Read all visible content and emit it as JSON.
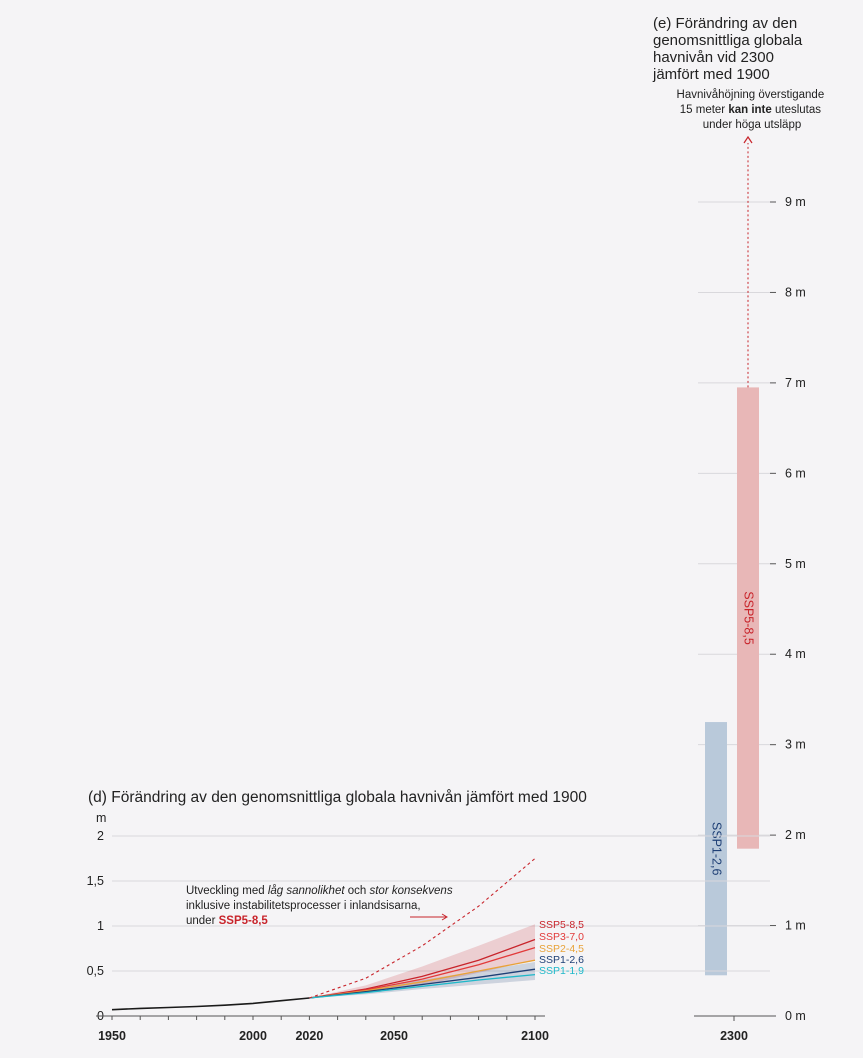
{
  "colors": {
    "ssp585": "#c8242b",
    "ssp370": "#e23a3a",
    "ssp245": "#e8a238",
    "ssp126": "#1e3f75",
    "ssp119": "#1fb8c9",
    "historical": "#1a1a1a",
    "bar_ssp126": "#b9c9da",
    "bar_ssp585": "#e8b7b7",
    "grid": "#d9d8dc"
  },
  "panel_e": {
    "title_lines": [
      "(e) Förändring av den",
      "genomsnittliga globala",
      "havnivån vid 2300",
      "jämfört med 1900"
    ],
    "note_lines": [
      "Havnivåhöjning överstigande",
      "15 meter ",
      "kan inte",
      " uteslutas",
      "under höga utsläpp"
    ],
    "x_tick": "2300",
    "y_unit": "m"
  },
  "panel_d": {
    "title": "(d) Förändring av den genomsnittliga globala havnivån jämfört med 1900",
    "y_unit": "m",
    "note_parts": [
      "Utveckling med ",
      "låg sannolikhet",
      " och ",
      "stor konsekvens",
      "inklusive instabilitetsprocesser i inlandsisarna,",
      "under ",
      "SSP5-8,5"
    ]
  },
  "chart_data": [
    {
      "type": "line",
      "title": "(d) Förändring av den genomsnittliga globala havnivån jämfört med 1900",
      "xlabel": "",
      "ylabel": "m",
      "xlim": [
        1950,
        2100
      ],
      "ylim": [
        0,
        2
      ],
      "x_ticks": [
        "1950",
        "2000",
        "2020",
        "2050",
        "2100"
      ],
      "y_ticks": [
        "0",
        "0,5",
        "1",
        "1,5",
        "2"
      ],
      "historical": {
        "x": [
          1950,
          1960,
          1970,
          1980,
          1990,
          2000,
          2010,
          2020
        ],
        "y": [
          0.07,
          0.085,
          0.095,
          0.105,
          0.12,
          0.14,
          0.17,
          0.2
        ]
      },
      "series": [
        {
          "name": "SSP5-8,5",
          "key": "ssp585",
          "x": [
            2020,
            2040,
            2060,
            2080,
            2100
          ],
          "y": [
            0.2,
            0.3,
            0.44,
            0.62,
            0.85
          ],
          "low": [
            0.2,
            0.26,
            0.34,
            0.48,
            0.62
          ],
          "high": [
            0.2,
            0.34,
            0.55,
            0.78,
            1.02
          ]
        },
        {
          "name": "SSP3-7,0",
          "key": "ssp370",
          "x": [
            2020,
            2040,
            2060,
            2080,
            2100
          ],
          "y": [
            0.2,
            0.29,
            0.41,
            0.57,
            0.76
          ]
        },
        {
          "name": "SSP2-4,5",
          "key": "ssp245",
          "x": [
            2020,
            2040,
            2060,
            2080,
            2100
          ],
          "y": [
            0.2,
            0.28,
            0.38,
            0.5,
            0.62
          ]
        },
        {
          "name": "SSP1-2,6",
          "key": "ssp126",
          "x": [
            2020,
            2040,
            2060,
            2080,
            2100
          ],
          "y": [
            0.2,
            0.27,
            0.35,
            0.43,
            0.52
          ],
          "low": [
            0.2,
            0.24,
            0.3,
            0.35,
            0.4
          ],
          "high": [
            0.2,
            0.3,
            0.4,
            0.5,
            0.6
          ]
        },
        {
          "name": "SSP1-1,9",
          "key": "ssp119",
          "x": [
            2020,
            2040,
            2060,
            2080,
            2100
          ],
          "y": [
            0.2,
            0.26,
            0.33,
            0.4,
            0.46
          ]
        }
      ],
      "low_likelihood_ssp585": {
        "x": [
          2020,
          2040,
          2060,
          2080,
          2100
        ],
        "y": [
          0.2,
          0.42,
          0.78,
          1.22,
          1.75
        ]
      }
    },
    {
      "type": "bar",
      "title": "(e) Förändring av den genomsnittliga globala havnivån vid 2300 jämfört med 1900",
      "x_ticks": [
        "2300"
      ],
      "y_ticks": [
        "0 m",
        "1 m",
        "2 m",
        "3 m",
        "4 m",
        "5 m",
        "6 m",
        "7 m",
        "8 m",
        "9 m"
      ],
      "ylim": [
        0,
        9.5
      ],
      "ranges": [
        {
          "name": "SSP1-2,6",
          "key": "ssp126",
          "low": 0.45,
          "high": 3.25
        },
        {
          "name": "SSP5-8,5",
          "key": "ssp585",
          "low": 1.85,
          "high": 6.95
        }
      ],
      "arrow_to": 9.75
    }
  ]
}
